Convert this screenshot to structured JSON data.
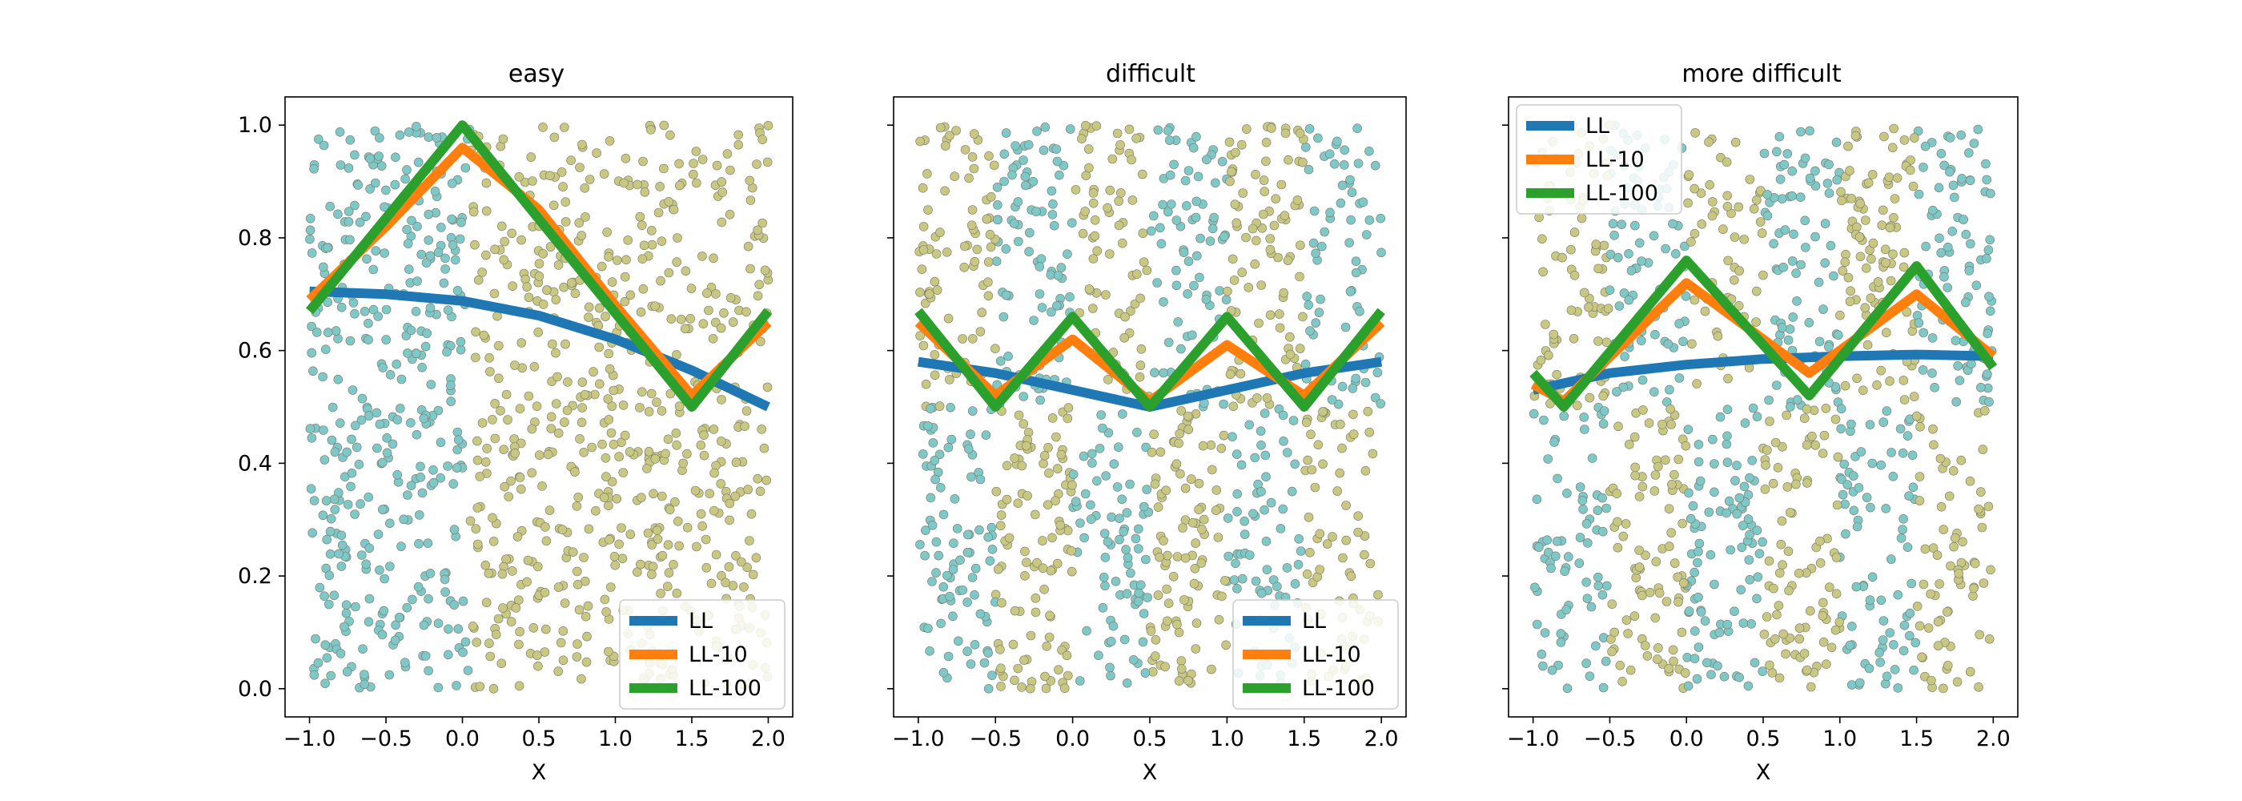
{
  "figure": {
    "shared_x_label": "X"
  },
  "chart_data": [
    {
      "type": "scatter",
      "title": "easy",
      "xlabel": "X",
      "ylabel": "",
      "xlim": [
        -1.16,
        2.16
      ],
      "ylim": [
        -0.05,
        1.05
      ],
      "xticks": [
        -1.0,
        -0.5,
        0.0,
        0.5,
        1.0,
        1.5,
        2.0
      ],
      "xtick_labels": [
        "−1.0",
        "−0.5",
        "0.0",
        "0.5",
        "1.0",
        "1.5",
        "2.0"
      ],
      "yticks": [
        0.0,
        0.2,
        0.4,
        0.6,
        0.8,
        1.0
      ],
      "ytick_labels": [
        "0.0",
        "0.2",
        "0.4",
        "0.6",
        "0.8",
        "1.0"
      ],
      "show_yticklabels": true,
      "legend_position": "lower-right",
      "points": {
        "count": 1000,
        "x_range": [
          -1,
          2
        ],
        "y_range": [
          0,
          1
        ],
        "class_colors": [
          "#7ec8c8",
          "#c8c882"
        ],
        "rule": "above-piecewise-boundary",
        "boundary_x": [
          -1.0,
          0.0,
          1.5,
          2.0
        ],
        "boundary_y": [
          0.67,
          1.0,
          0.5,
          0.67
        ]
      },
      "series": [
        {
          "name": "LL",
          "color": "#1f77b4",
          "x": [
            -1.0,
            -0.5,
            0.0,
            0.5,
            1.0,
            1.5,
            2.0
          ],
          "y": [
            0.705,
            0.7,
            0.688,
            0.662,
            0.62,
            0.565,
            0.5
          ]
        },
        {
          "name": "LL-10",
          "color": "#ff7f0e",
          "x": [
            -1.0,
            -0.5,
            0.0,
            0.5,
            1.0,
            1.5,
            2.0
          ],
          "y": [
            0.69,
            0.82,
            0.96,
            0.85,
            0.68,
            0.52,
            0.65
          ]
        },
        {
          "name": "LL-100",
          "color": "#2ca02c",
          "x": [
            -1.0,
            0.0,
            1.5,
            2.0
          ],
          "y": [
            0.67,
            1.0,
            0.5,
            0.67
          ]
        }
      ]
    },
    {
      "type": "scatter",
      "title": "difficult",
      "xlabel": "X",
      "ylabel": "",
      "xlim": [
        -1.16,
        2.16
      ],
      "ylim": [
        -0.05,
        1.05
      ],
      "xticks": [
        -1.0,
        -0.5,
        0.0,
        0.5,
        1.0,
        1.5,
        2.0
      ],
      "xtick_labels": [
        "−1.0",
        "−0.5",
        "0.0",
        "0.5",
        "1.0",
        "1.5",
        "2.0"
      ],
      "yticks": [
        0.0,
        0.2,
        0.4,
        0.6,
        0.8,
        1.0
      ],
      "ytick_labels": [
        "0.0",
        "0.2",
        "0.4",
        "0.6",
        "0.8",
        "1.0"
      ],
      "show_yticklabels": false,
      "legend_position": "lower-right",
      "points": {
        "count": 1000,
        "x_range": [
          -1,
          2
        ],
        "y_range": [
          0,
          1
        ],
        "class_colors": [
          "#7ec8c8",
          "#c8c882"
        ],
        "rule": "checkerboard",
        "x_cells": 6,
        "y_cells": 2
      },
      "series": [
        {
          "name": "LL",
          "color": "#1f77b4",
          "x": [
            -1.0,
            -0.5,
            0.0,
            0.5,
            1.0,
            1.5,
            2.0
          ],
          "y": [
            0.58,
            0.56,
            0.53,
            0.5,
            0.53,
            0.56,
            0.58
          ]
        },
        {
          "name": "LL-10",
          "color": "#ff7f0e",
          "x": [
            -1.0,
            -0.5,
            0.0,
            0.5,
            1.0,
            1.5,
            2.0
          ],
          "y": [
            0.65,
            0.52,
            0.62,
            0.51,
            0.61,
            0.52,
            0.65
          ]
        },
        {
          "name": "LL-100",
          "color": "#2ca02c",
          "x": [
            -1.0,
            -0.5,
            0.0,
            0.5,
            1.0,
            1.5,
            2.0
          ],
          "y": [
            0.67,
            0.5,
            0.66,
            0.5,
            0.66,
            0.5,
            0.67
          ]
        }
      ]
    },
    {
      "type": "scatter",
      "title": "more difficult",
      "xlabel": "X",
      "ylabel": "",
      "xlim": [
        -1.16,
        2.16
      ],
      "ylim": [
        -0.05,
        1.05
      ],
      "xticks": [
        -1.0,
        -0.5,
        0.0,
        0.5,
        1.0,
        1.5,
        2.0
      ],
      "xtick_labels": [
        "−1.0",
        "−0.5",
        "0.0",
        "0.5",
        "1.0",
        "1.5",
        "2.0"
      ],
      "yticks": [
        0.0,
        0.2,
        0.4,
        0.6,
        0.8,
        1.0
      ],
      "ytick_labels": [
        "0.0",
        "0.2",
        "0.4",
        "0.6",
        "0.8",
        "1.0"
      ],
      "show_yticklabels": false,
      "legend_position": "upper-left",
      "points": {
        "count": 1000,
        "x_range": [
          -1,
          2
        ],
        "y_range": [
          0,
          1
        ],
        "class_colors": [
          "#7ec8c8",
          "#c8c882"
        ],
        "rule": "checkerboard",
        "x_cells": 6,
        "y_cells": 2
      },
      "series": [
        {
          "name": "LL",
          "color": "#1f77b4",
          "x": [
            -1.0,
            -0.5,
            0.0,
            0.5,
            1.0,
            1.5,
            2.0
          ],
          "y": [
            0.53,
            0.56,
            0.575,
            0.585,
            0.59,
            0.593,
            0.59
          ]
        },
        {
          "name": "LL-10",
          "color": "#ff7f0e",
          "x": [
            -1.0,
            -0.8,
            0.0,
            0.8,
            1.5,
            2.0
          ],
          "y": [
            0.54,
            0.51,
            0.72,
            0.56,
            0.7,
            0.59
          ]
        },
        {
          "name": "LL-100",
          "color": "#2ca02c",
          "x": [
            -1.0,
            -0.8,
            0.0,
            0.8,
            1.5,
            2.0
          ],
          "y": [
            0.56,
            0.5,
            0.76,
            0.52,
            0.75,
            0.57
          ]
        }
      ]
    }
  ]
}
